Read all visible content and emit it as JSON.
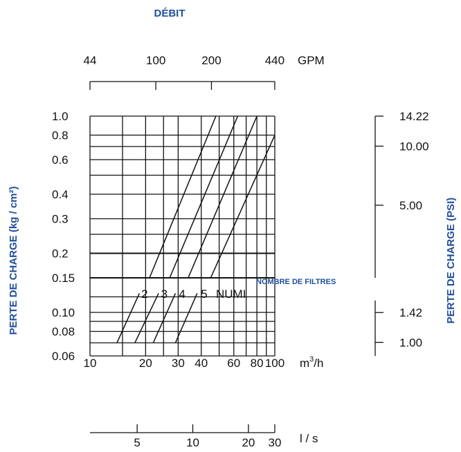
{
  "colors": {
    "accent": "#1f4e99",
    "ink": "#111111"
  },
  "chart_data": {
    "type": "line",
    "title": "DÉBIT",
    "xlabel": "m³/h",
    "ylabel": "PERTE DE CHARGE (kg / cm²)",
    "right_label": "PERTE DE CHARGE (PSI)",
    "scale": "log-log",
    "grid": true,
    "xlim": [
      10,
      100
    ],
    "ylim": [
      0.06,
      1.0
    ],
    "x_ticks": [
      "10",
      "20",
      "30",
      "40",
      "60",
      "80",
      "100"
    ],
    "y_ticks": [
      "1.0",
      "0.8",
      "0.6",
      "0.4",
      "0.3",
      "0.2",
      "0.15",
      "0.10",
      "0.08",
      "0.06"
    ],
    "gpm_axis": {
      "unit": "GPM",
      "ticks": [
        "44",
        "100",
        "200",
        "440"
      ]
    },
    "ls_axis": {
      "unit": "l / s",
      "ticks": [
        "5",
        "10",
        "20",
        "30"
      ]
    },
    "psi_axis": {
      "upper_ticks": [
        "14.22",
        "10.00",
        "5.00"
      ],
      "lower_ticks": [
        "1.42",
        "1.00"
      ]
    },
    "curve_group_label": "NOMBRE DE FILTRES",
    "series": [
      {
        "name": "2",
        "lower": [
          [
            14,
            0.07
          ],
          [
            18.5,
            0.125
          ]
        ],
        "upper": [
          [
            21,
            0.15
          ],
          [
            48,
            1.0
          ]
        ]
      },
      {
        "name": "3",
        "lower": [
          [
            17.5,
            0.07
          ],
          [
            23.5,
            0.125
          ]
        ],
        "upper": [
          [
            27,
            0.15
          ],
          [
            63,
            1.0
          ]
        ]
      },
      {
        "name": "4",
        "lower": [
          [
            22,
            0.07
          ],
          [
            29,
            0.125
          ]
        ],
        "upper": [
          [
            34,
            0.15
          ],
          [
            80,
            1.0
          ]
        ]
      },
      {
        "name": "5",
        "lower": [
          [
            29,
            0.07
          ],
          [
            38,
            0.125
          ]
        ],
        "upper": [
          [
            45,
            0.15
          ],
          [
            100,
            0.8
          ]
        ]
      }
    ],
    "annotation": "NUMI"
  }
}
